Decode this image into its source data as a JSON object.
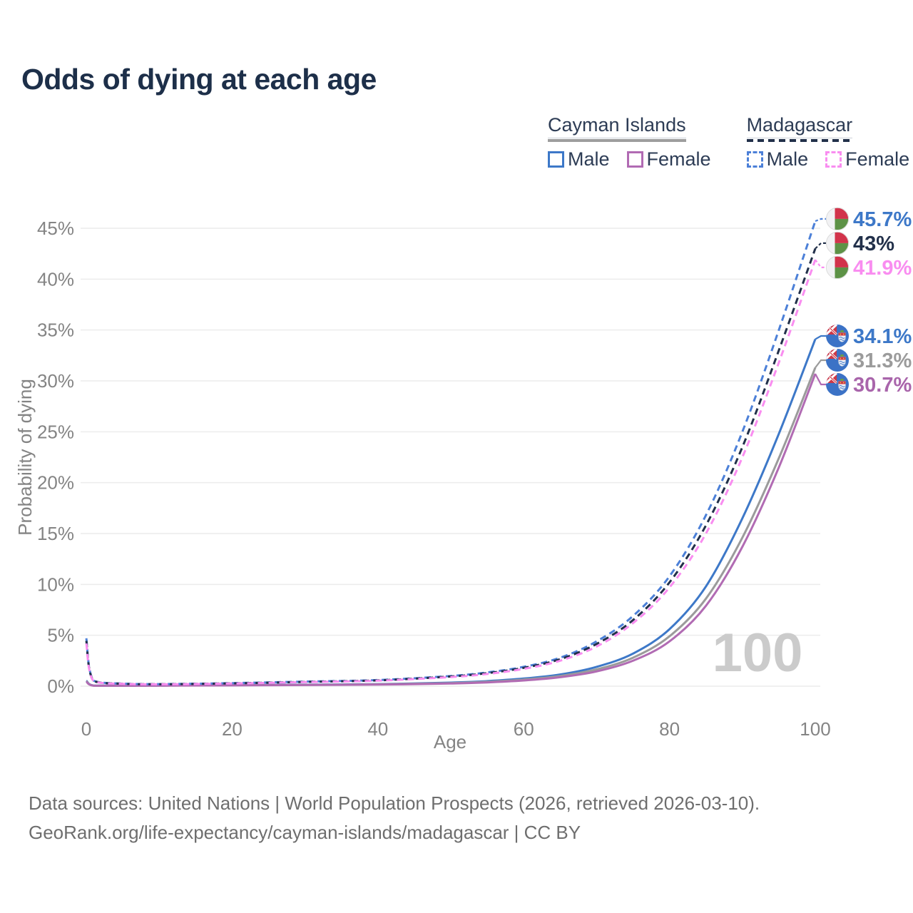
{
  "header": {
    "title": "Odds of dying at each age"
  },
  "legend": {
    "groups": [
      {
        "name": "Cayman Islands",
        "line_style": "solid",
        "items": [
          {
            "label": "Male",
            "color": "#3d78c8",
            "dashed": false
          },
          {
            "label": "Female",
            "color": "#b16bb3",
            "dashed": false
          }
        ]
      },
      {
        "name": "Madagascar",
        "line_style": "dashed",
        "items": [
          {
            "label": "Male",
            "color": "#4c80d8",
            "dashed": true
          },
          {
            "label": "Female",
            "color": "#f98df0",
            "dashed": true
          }
        ]
      }
    ]
  },
  "chart_data": {
    "type": "line",
    "title": "Odds of dying at each age",
    "xlabel": "Age",
    "ylabel": "Probability of dying",
    "xlim": [
      0,
      100
    ],
    "ylim": [
      0,
      45
    ],
    "x_ticks": [
      0,
      20,
      40,
      60,
      80,
      100
    ],
    "y_ticks": [
      0,
      5,
      10,
      15,
      20,
      25,
      30,
      35,
      40,
      45
    ],
    "y_tick_suffix": "%",
    "grid": true,
    "watermark": "100",
    "legend_position": "top-right",
    "ages": [
      0,
      1,
      5,
      10,
      20,
      30,
      40,
      50,
      55,
      60,
      65,
      70,
      75,
      80,
      85,
      90,
      95,
      100
    ],
    "series": [
      {
        "id": "cayman-islands-male",
        "name": "Cayman Islands Male",
        "country": "Cayman Islands",
        "sex": "Male",
        "color": "#3d78c8",
        "dashed": false,
        "flag": "cayman-islands",
        "end_label": "34.1%",
        "label_color": "#3d78c8",
        "values": [
          0.55,
          0.06,
          0.05,
          0.06,
          0.12,
          0.15,
          0.2,
          0.35,
          0.5,
          0.75,
          1.15,
          1.9,
          3.2,
          5.6,
          9.8,
          16.5,
          24.8,
          34.1
        ]
      },
      {
        "id": "cayman-islands-overall",
        "name": "Cayman Islands Overall",
        "country": "Cayman Islands",
        "sex": "Overall",
        "color": "#9b9b9b",
        "dashed": false,
        "flag": "cayman-islands",
        "end_label": "31.3%",
        "label_color": "#9b9b9b",
        "values": [
          0.5,
          0.055,
          0.045,
          0.055,
          0.1,
          0.13,
          0.18,
          0.3,
          0.43,
          0.65,
          1.0,
          1.65,
          2.8,
          4.9,
          8.6,
          14.6,
          22.4,
          31.3
        ]
      },
      {
        "id": "cayman-islands-female",
        "name": "Cayman Islands Female",
        "country": "Cayman Islands",
        "sex": "Female",
        "color": "#b16bb3",
        "dashed": false,
        "flag": "cayman-islands",
        "end_label": "30.7%",
        "label_color": "#a965ab",
        "values": [
          0.45,
          0.05,
          0.04,
          0.05,
          0.08,
          0.11,
          0.16,
          0.26,
          0.37,
          0.56,
          0.88,
          1.45,
          2.5,
          4.4,
          7.9,
          13.7,
          21.5,
          30.7
        ]
      },
      {
        "id": "madagascar-male",
        "name": "Madagascar Male",
        "country": "Madagascar",
        "sex": "Male",
        "color": "#4c80d8",
        "dashed": true,
        "flag": "madagascar",
        "end_label": "45.7%",
        "label_color": "#3d78c8",
        "values": [
          4.7,
          0.55,
          0.25,
          0.2,
          0.3,
          0.45,
          0.6,
          1.0,
          1.35,
          1.9,
          2.8,
          4.4,
          6.9,
          10.8,
          16.8,
          25.0,
          35.0,
          45.7
        ]
      },
      {
        "id": "madagascar-overall",
        "name": "Madagascar Overall",
        "country": "Madagascar",
        "sex": "Overall",
        "color": "#22304a",
        "dashed": true,
        "flag": "madagascar",
        "end_label": "43%",
        "label_color": "#22304a",
        "values": [
          4.45,
          0.52,
          0.24,
          0.19,
          0.28,
          0.42,
          0.57,
          0.95,
          1.28,
          1.8,
          2.65,
          4.15,
          6.5,
          10.2,
          15.8,
          23.5,
          33.0,
          43.0
        ]
      },
      {
        "id": "madagascar-female",
        "name": "Madagascar Female",
        "country": "Madagascar",
        "sex": "Female",
        "color": "#f98df0",
        "dashed": true,
        "flag": "madagascar",
        "end_label": "41.9%",
        "label_color": "#f98df0",
        "values": [
          4.2,
          0.5,
          0.23,
          0.18,
          0.26,
          0.4,
          0.54,
          0.9,
          1.2,
          1.7,
          2.5,
          3.9,
          6.2,
          9.7,
          15.0,
          22.5,
          31.8,
          41.9
        ]
      }
    ]
  },
  "footer": {
    "line1": "Data sources: United Nations | World Population Prospects (2026, retrieved 2026-03-10).",
    "line2": "GeoRank.org/life-expectancy/cayman-islands/madagascar | CC BY"
  }
}
